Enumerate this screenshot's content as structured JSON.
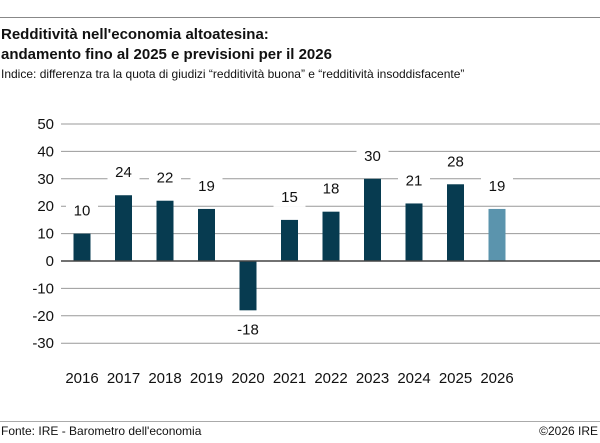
{
  "title_line1": "Redditività nell'economia altoatesina:",
  "title_line2": "andamento fino al 2025 e previsioni per il 2026",
  "subtitle": "Indice: differenza tra la quota di giudizi “redditività buona” e “redditività insoddisfacente”",
  "footer": {
    "source": "Fonte: IRE - Barometro dell'economia",
    "copyright": "©2026 IRE"
  },
  "chart_data": {
    "type": "bar",
    "title": "Redditività nell'economia altoatesina: andamento fino al 2025 e previsioni per il 2026",
    "subtitle": "Indice: differenza tra la quota di giudizi “redditività buona” e “redditività insoddisfacente”",
    "categories": [
      "2016",
      "2017",
      "2018",
      "2019",
      "2020",
      "2021",
      "2022",
      "2023",
      "2024",
      "2025",
      "2026"
    ],
    "values": [
      10,
      24,
      22,
      19,
      -18,
      15,
      18,
      30,
      21,
      28,
      19
    ],
    "data_labels": [
      "10",
      "24",
      "22",
      "19",
      "-18",
      "15",
      "18",
      "30",
      "21",
      "28",
      "19"
    ],
    "ylim": [
      -30,
      50
    ],
    "yticks": [
      "50",
      "40",
      "30",
      "20",
      "10",
      "0",
      "-10",
      "-20",
      "-30"
    ],
    "grid": true,
    "colors": {
      "actual": "#073B50",
      "forecast": "#5B94AD"
    },
    "forecast_categories": [
      "2026"
    ]
  }
}
